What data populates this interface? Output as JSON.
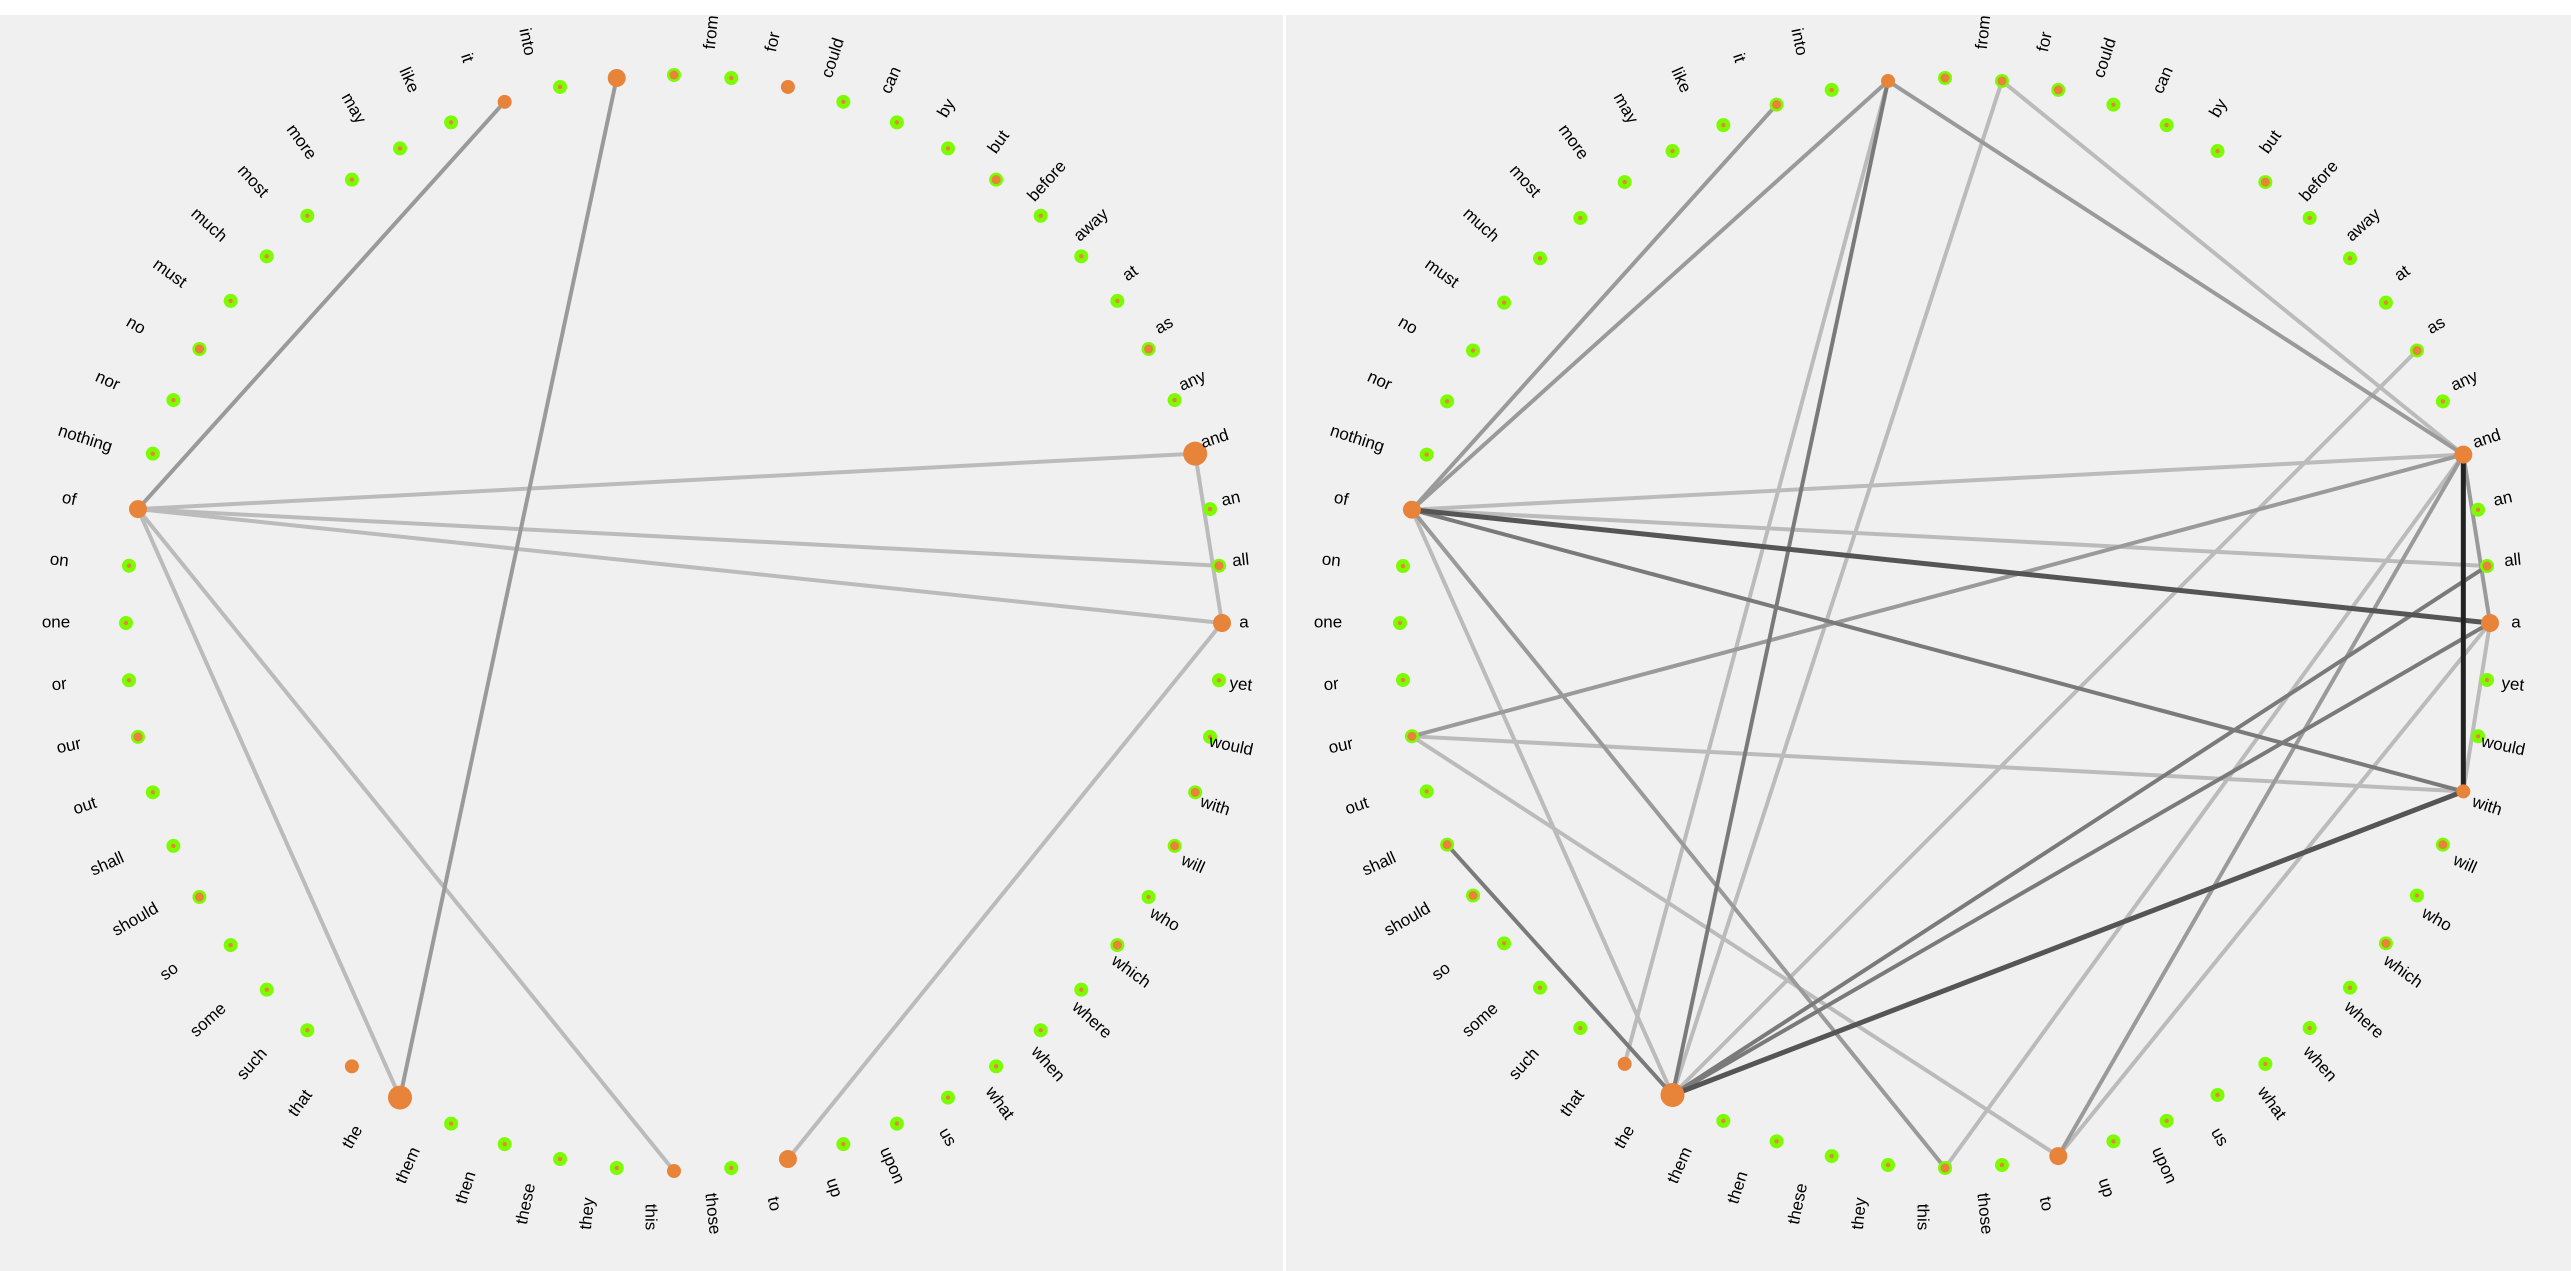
{
  "colors": {
    "background": "#f0f0f0",
    "node_ring": "#7cfc00",
    "node_core": "#e8833a",
    "edge_shades": [
      "#bbbbbb",
      "#9a9a9a",
      "#7a7a7a",
      "#555555",
      "#222222"
    ]
  },
  "words": [
    "a",
    "all",
    "an",
    "and",
    "any",
    "as",
    "at",
    "away",
    "before",
    "but",
    "by",
    "can",
    "could",
    "for",
    "from",
    "",
    "",
    "into",
    "it",
    "like",
    "may",
    "more",
    "most",
    "much",
    "must",
    "no",
    "nor",
    "nothing",
    "of",
    "on",
    "one",
    "or",
    "our",
    "out",
    "shall",
    "should",
    "so",
    "some",
    "such",
    "that",
    "the",
    "them",
    "then",
    "these",
    "they",
    "this",
    "those",
    "to",
    "up",
    "upon",
    "us",
    "what",
    "when",
    "where",
    "which",
    "who",
    "will",
    "with",
    "would",
    "yet"
  ],
  "panels": [
    {
      "id": "left",
      "node_levels": {
        "it": 2,
        "#15": 1,
        "#16": 3,
        "for": 2,
        "but": 1,
        "as": 1,
        "and": 4,
        "all": 1,
        "a": 3,
        "with": 1,
        "will": 1,
        "which": 1,
        "our": 1,
        "should": 1,
        "that": 2,
        "the": 4,
        "this": 2,
        "to": 3,
        "of": 3,
        "no": 1
      },
      "edges": [
        [
          "it",
          "of",
          2
        ],
        [
          "#16",
          "the",
          2
        ],
        [
          "of",
          "and",
          1
        ],
        [
          "of",
          "all",
          1
        ],
        [
          "of",
          "a",
          1
        ],
        [
          "and",
          "a",
          1
        ],
        [
          "of",
          "the",
          1
        ],
        [
          "of",
          "this",
          1
        ],
        [
          "a",
          "to",
          1
        ]
      ]
    },
    {
      "id": "right",
      "node_levels": {
        "it": 1,
        "#15": 1,
        "#16": 2,
        "from": 1,
        "for": 1,
        "but": 1,
        "as": 1,
        "and": 3,
        "all": 1,
        "a": 3,
        "with": 2,
        "will": 1,
        "which": 1,
        "our": 1,
        "shall": 1,
        "should": 1,
        "that": 2,
        "the": 4,
        "this": 1,
        "to": 3,
        "of": 3
      },
      "edges": [
        [
          "it",
          "of",
          2
        ],
        [
          "#16",
          "of",
          2
        ],
        [
          "#16",
          "the",
          3
        ],
        [
          "#16",
          "and",
          2
        ],
        [
          "that",
          "#16",
          1
        ],
        [
          "from",
          "and",
          1
        ],
        [
          "from",
          "the",
          1
        ],
        [
          "as",
          "the",
          1
        ],
        [
          "of",
          "and",
          1
        ],
        [
          "of",
          "all",
          1
        ],
        [
          "of",
          "a",
          4
        ],
        [
          "of",
          "with",
          3
        ],
        [
          "of",
          "the",
          1
        ],
        [
          "of",
          "this",
          2
        ],
        [
          "our",
          "and",
          2
        ],
        [
          "our",
          "with",
          1
        ],
        [
          "our",
          "to",
          1
        ],
        [
          "shall",
          "the",
          3
        ],
        [
          "the",
          "all",
          3
        ],
        [
          "the",
          "a",
          3
        ],
        [
          "the",
          "with",
          4
        ],
        [
          "this",
          "and",
          1
        ],
        [
          "to",
          "and",
          2
        ],
        [
          "to",
          "a",
          1
        ],
        [
          "and",
          "a",
          2
        ],
        [
          "and",
          "with",
          5
        ],
        [
          "a",
          "with",
          1
        ]
      ]
    }
  ]
}
